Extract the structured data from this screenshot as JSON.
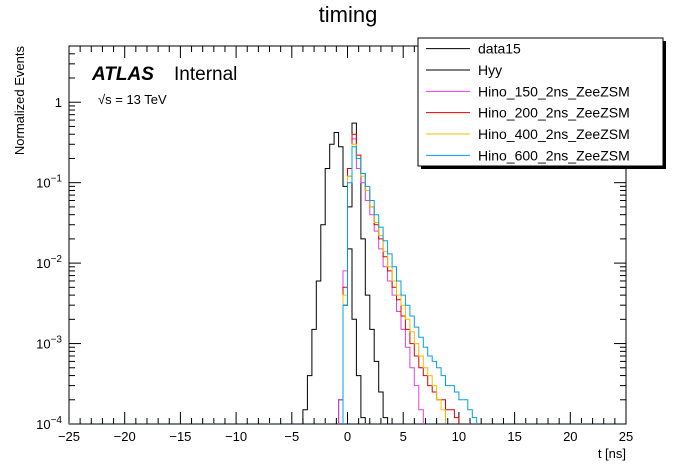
{
  "chart_data": {
    "type": "line",
    "title": "timing",
    "xlabel": "t [ns]",
    "ylabel": "Normalized Events",
    "xlim": [
      -25,
      25
    ],
    "ylim": [
      0.0001,
      5
    ],
    "log_y": true,
    "bin_width": 0.4,
    "x_ticks": [
      "−25",
      "−20",
      "−15",
      "−10",
      "−5",
      "0",
      "5",
      "10",
      "15",
      "20",
      "25"
    ],
    "x_tick_values": [
      -25,
      -20,
      -15,
      -10,
      -5,
      0,
      5,
      10,
      15,
      20,
      25
    ],
    "y_ticks": [
      {
        "value": 0.0001,
        "base": "10",
        "exp": "−4"
      },
      {
        "value": 0.001,
        "base": "10",
        "exp": "−3"
      },
      {
        "value": 0.01,
        "base": "10",
        "exp": "−2"
      },
      {
        "value": 0.1,
        "base": "10",
        "exp": "−1"
      },
      {
        "value": 1,
        "base": "1",
        "exp": ""
      }
    ],
    "atlas_label": "ATLAS",
    "atlas_status": "Internal",
    "energy_label": "√s = 13 TeV",
    "legend_position": "top-right",
    "series": [
      {
        "name": "data15",
        "color": "#000000",
        "edges": [
          -4.0,
          -3.6,
          -3.2,
          -2.8,
          -2.4,
          -2.0,
          -1.6,
          -1.2,
          -0.8,
          -0.4,
          0.0,
          0.4,
          0.8,
          1.2,
          1.6
        ],
        "values": [
          0.00015,
          0.0004,
          0.0015,
          0.006,
          0.03,
          0.15,
          0.3,
          0.42,
          0.28,
          0.09,
          0.015,
          0.002,
          0.0004,
          0.00012
        ]
      },
      {
        "name": "Hyy",
        "color": "#000000",
        "edges": [
          -0.8,
          -0.4,
          0.0,
          0.4,
          0.8,
          1.2,
          1.6,
          2.0,
          2.4,
          2.8,
          3.2,
          3.6
        ],
        "values": [
          0.0002,
          0.003,
          0.05,
          0.55,
          0.2,
          0.02,
          0.004,
          0.0015,
          0.0006,
          0.00025,
          0.00012
        ]
      },
      {
        "name": "Hino_150_2ns_ZeeZSM",
        "color": "#e040e0",
        "edges": [
          -0.8,
          -0.4,
          0.0,
          0.4,
          0.8,
          1.2,
          1.6,
          2.0,
          2.4,
          2.8,
          3.2,
          3.6,
          4.0,
          4.4,
          4.8,
          5.2,
          5.6,
          6.0,
          6.4,
          6.8
        ],
        "values": [
          0.0002,
          0.008,
          0.12,
          0.35,
          0.15,
          0.1,
          0.06,
          0.04,
          0.025,
          0.015,
          0.009,
          0.006,
          0.004,
          0.0025,
          0.0015,
          0.0009,
          0.0005,
          0.0003,
          0.00015
        ]
      },
      {
        "name": "Hino_200_2ns_ZeeZSM",
        "color": "#e00000",
        "edges": [
          -0.4,
          0.0,
          0.4,
          0.8,
          1.2,
          1.6,
          2.0,
          2.4,
          2.8,
          3.2,
          3.6,
          4.0,
          4.4,
          4.8,
          5.2,
          5.6,
          6.0,
          6.4,
          6.8,
          7.2,
          7.6,
          8.0,
          8.4,
          8.8,
          9.2,
          9.6,
          10.0
        ],
        "values": [
          0.005,
          0.15,
          0.4,
          0.22,
          0.13,
          0.08,
          0.05,
          0.03,
          0.02,
          0.012,
          0.008,
          0.005,
          0.0035,
          0.0022,
          0.0015,
          0.001,
          0.0007,
          0.0005,
          0.0004,
          0.0003,
          0.00025,
          0.0002,
          0.0002,
          0.00015,
          0.00015,
          0.00012
        ]
      },
      {
        "name": "Hino_400_2ns_ZeeZSM",
        "color": "#f0c000",
        "edges": [
          -0.4,
          0.0,
          0.4,
          0.8,
          1.2,
          1.6,
          2.0,
          2.4,
          2.8,
          3.2,
          3.6,
          4.0,
          4.4,
          4.8,
          5.2,
          5.6,
          6.0,
          6.4,
          6.8,
          7.2,
          7.6,
          8.0,
          8.4,
          8.8
        ],
        "values": [
          0.004,
          0.12,
          0.3,
          0.2,
          0.12,
          0.08,
          0.05,
          0.032,
          0.022,
          0.014,
          0.009,
          0.006,
          0.004,
          0.003,
          0.002,
          0.0014,
          0.001,
          0.0007,
          0.0005,
          0.0004,
          0.0003,
          0.0002,
          0.00015
        ]
      },
      {
        "name": "Hino_600_2ns_ZeeZSM",
        "color": "#00a0e0",
        "edges": [
          -0.4,
          0.0,
          0.4,
          0.8,
          1.2,
          1.6,
          2.0,
          2.4,
          2.8,
          3.2,
          3.6,
          4.0,
          4.4,
          4.8,
          5.2,
          5.6,
          6.0,
          6.4,
          6.8,
          7.2,
          7.6,
          8.0,
          8.4,
          8.8,
          9.2,
          9.6,
          10.0,
          10.4,
          10.8,
          11.2,
          11.6
        ],
        "values": [
          0.003,
          0.1,
          0.28,
          0.2,
          0.13,
          0.09,
          0.06,
          0.04,
          0.028,
          0.019,
          0.013,
          0.009,
          0.006,
          0.004,
          0.003,
          0.0022,
          0.0016,
          0.0012,
          0.0009,
          0.0007,
          0.0006,
          0.0005,
          0.0004,
          0.0003,
          0.0003,
          0.00025,
          0.0002,
          0.0002,
          0.00015,
          0.00012
        ]
      }
    ]
  }
}
